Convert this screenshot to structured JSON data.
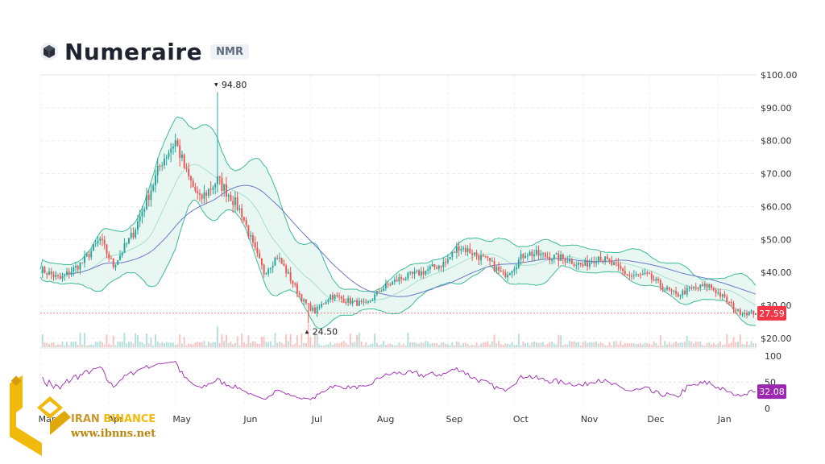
{
  "header": {
    "title": "Numeraire",
    "ticker": "NMR",
    "logo_icon": "numeraire-cube-icon"
  },
  "watermark": {
    "brand_part1": "IRAN",
    "brand_part2": "BINANCE",
    "url": "www.ibnns.net",
    "logo_icon": "binance-gold-logo-icon"
  },
  "colors": {
    "up": "#26a69a",
    "down": "#ef5350",
    "band_fill": "#dff3ee",
    "band_line": "#3dbb9a",
    "ma": "#6c78c7",
    "rsi": "#9c27b0",
    "price_badge": "#f23645",
    "rsi_badge": "#9c27b0"
  },
  "chart_data": {
    "type": "candlestick",
    "price_axis": {
      "ticks": [
        20,
        30,
        40,
        50,
        60,
        70,
        80,
        90,
        100
      ],
      "tick_labels": [
        "$20.00",
        "$30.00",
        "$40.00",
        "$50.00",
        "$60.00",
        "$70.00",
        "$80.00",
        "$90.00",
        "$100.00"
      ],
      "ylim": [
        18,
        100
      ]
    },
    "x_axis": {
      "labels": [
        "Mar",
        "Apr",
        "May",
        "Jun",
        "Jul",
        "Aug",
        "Sep",
        "Oct",
        "Nov",
        "Dec",
        "Jan"
      ],
      "start": "2021-03-01",
      "end": "2022-01-18"
    },
    "close_series": [
      [
        "2021-03-01",
        41
      ],
      [
        "2021-03-10",
        38
      ],
      [
        "2021-03-20",
        43
      ],
      [
        "2021-03-28",
        50
      ],
      [
        "2021-04-03",
        42
      ],
      [
        "2021-04-12",
        52
      ],
      [
        "2021-04-18",
        62
      ],
      [
        "2021-04-25",
        74
      ],
      [
        "2021-05-01",
        80
      ],
      [
        "2021-05-06",
        70
      ],
      [
        "2021-05-12",
        62
      ],
      [
        "2021-05-20",
        68
      ],
      [
        "2021-05-26",
        63
      ],
      [
        "2021-05-31",
        58
      ],
      [
        "2021-06-05",
        48
      ],
      [
        "2021-06-10",
        40
      ],
      [
        "2021-06-16",
        45
      ],
      [
        "2021-06-22",
        38
      ],
      [
        "2021-06-28",
        31
      ],
      [
        "2021-07-03",
        28
      ],
      [
        "2021-07-10",
        33
      ],
      [
        "2021-07-20",
        31
      ],
      [
        "2021-07-26",
        30
      ],
      [
        "2021-08-02",
        35
      ],
      [
        "2021-08-10",
        38
      ],
      [
        "2021-08-20",
        40
      ],
      [
        "2021-08-31",
        43
      ],
      [
        "2021-09-06",
        48
      ],
      [
        "2021-09-12",
        46
      ],
      [
        "2021-09-20",
        43
      ],
      [
        "2021-09-26",
        39
      ],
      [
        "2021-10-01",
        42
      ],
      [
        "2021-10-06",
        46
      ],
      [
        "2021-10-15",
        45
      ],
      [
        "2021-10-25",
        44
      ],
      [
        "2021-11-01",
        42
      ],
      [
        "2021-11-08",
        45
      ],
      [
        "2021-11-15",
        42
      ],
      [
        "2021-11-22",
        39
      ],
      [
        "2021-11-30",
        39
      ],
      [
        "2021-12-06",
        36
      ],
      [
        "2021-12-13",
        33
      ],
      [
        "2021-12-20",
        35
      ],
      [
        "2021-12-28",
        36
      ],
      [
        "2022-01-04",
        32
      ],
      [
        "2022-01-10",
        28
      ],
      [
        "2022-01-18",
        27.59
      ]
    ],
    "annotations": [
      {
        "label": "94.80",
        "value": 94.8,
        "date": "2021-05-20",
        "kind": "high"
      },
      {
        "label": "24.50",
        "value": 24.5,
        "date": "2021-06-30",
        "kind": "low"
      }
    ],
    "last_price": {
      "value": 27.59,
      "label": "27.59"
    },
    "rsi": {
      "ticks": [
        0,
        50,
        100
      ],
      "tick_labels": [
        "0",
        "50",
        "100"
      ],
      "ylim": [
        0,
        100
      ],
      "last": {
        "value": 32.08,
        "label": "32.08"
      }
    },
    "indicators": [
      "Bollinger Bands",
      "Moving Average",
      "Volume",
      "RSI"
    ],
    "grid": true,
    "legend": "none"
  }
}
